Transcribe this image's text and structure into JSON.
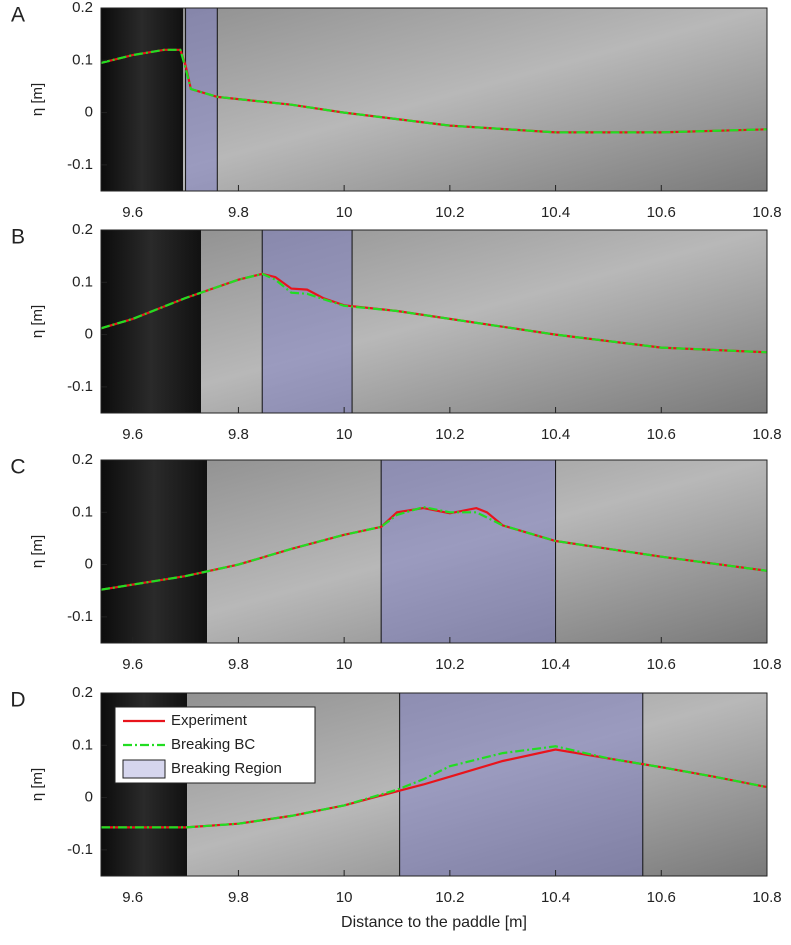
{
  "chart_data": [
    {
      "type": "line",
      "label": "A",
      "ylabel": "η [m]",
      "x": [
        9.54,
        9.6,
        9.66,
        9.69,
        9.7,
        9.71,
        9.76,
        9.9,
        10.0,
        10.2,
        10.4,
        10.6,
        10.8
      ],
      "series": [
        {
          "color": "#e8141c",
          "style": "solid",
          "values": [
            0.095,
            0.11,
            0.12,
            0.12,
            0.09,
            0.045,
            0.03,
            0.015,
            0.0,
            -0.025,
            -0.038,
            -0.038,
            -0.032
          ]
        },
        {
          "color": "#22dd22",
          "style": "dashdot",
          "values": [
            0.095,
            0.11,
            0.12,
            0.12,
            0.085,
            0.045,
            0.03,
            0.015,
            0.0,
            -0.025,
            -0.038,
            -0.038,
            -0.032
          ]
        }
      ],
      "region": {
        "x": [
          9.7,
          9.76
        ],
        "color": "#7878c8"
      },
      "xlim": [
        9.54,
        10.8
      ],
      "xticks": [
        9.6,
        9.8,
        10,
        10.2,
        10.4,
        10.6,
        10.8
      ],
      "ylim": [
        -0.15,
        0.2
      ],
      "yticks": [
        0.2,
        0.1,
        0,
        -0.1
      ]
    },
    {
      "type": "line",
      "label": "B",
      "ylabel": "η [m]",
      "x": [
        9.54,
        9.6,
        9.7,
        9.8,
        9.845,
        9.87,
        9.9,
        9.93,
        9.96,
        10.0,
        10.1,
        10.2,
        10.4,
        10.6,
        10.8
      ],
      "series": [
        {
          "color": "#e8141c",
          "style": "solid",
          "values": [
            0.012,
            0.03,
            0.07,
            0.105,
            0.116,
            0.11,
            0.088,
            0.086,
            0.07,
            0.056,
            0.045,
            0.03,
            0.0,
            -0.025,
            -0.034
          ]
        },
        {
          "color": "#22dd22",
          "style": "dashdot",
          "values": [
            0.012,
            0.03,
            0.07,
            0.105,
            0.116,
            0.105,
            0.08,
            0.078,
            0.068,
            0.055,
            0.045,
            0.03,
            0.0,
            -0.025,
            -0.034
          ]
        }
      ],
      "region": {
        "x": [
          9.845,
          10.015
        ],
        "color": "#7878c8"
      },
      "xlim": [
        9.54,
        10.8
      ],
      "xticks": [
        9.6,
        9.8,
        10,
        10.2,
        10.4,
        10.6,
        10.8
      ],
      "ylim": [
        -0.15,
        0.2
      ],
      "yticks": [
        0.2,
        0.1,
        0,
        -0.1
      ]
    },
    {
      "type": "line",
      "label": "C",
      "ylabel": "η [m]",
      "x": [
        9.54,
        9.7,
        9.8,
        9.9,
        10.0,
        10.07,
        10.1,
        10.15,
        10.2,
        10.25,
        10.27,
        10.3,
        10.4,
        10.6,
        10.8
      ],
      "series": [
        {
          "color": "#e8141c",
          "style": "solid",
          "values": [
            -0.048,
            -0.022,
            0.0,
            0.03,
            0.057,
            0.072,
            0.1,
            0.108,
            0.098,
            0.108,
            0.1,
            0.075,
            0.045,
            0.015,
            -0.012
          ]
        },
        {
          "color": "#22dd22",
          "style": "dashdot",
          "values": [
            -0.048,
            -0.022,
            0.0,
            0.03,
            0.057,
            0.072,
            0.095,
            0.11,
            0.1,
            0.1,
            0.09,
            0.075,
            0.045,
            0.015,
            -0.012
          ]
        }
      ],
      "region": {
        "x": [
          10.07,
          10.4
        ],
        "color": "#7878c8"
      },
      "xlim": [
        9.54,
        10.8
      ],
      "xticks": [
        9.6,
        9.8,
        10,
        10.2,
        10.4,
        10.6,
        10.8
      ],
      "ylim": [
        -0.15,
        0.2
      ],
      "yticks": [
        0.2,
        0.1,
        0,
        -0.1
      ]
    },
    {
      "type": "line",
      "label": "D",
      "ylabel": "η [m]",
      "xlabel": "Distance to the paddle [m]",
      "x": [
        9.54,
        9.7,
        9.8,
        9.9,
        10.0,
        10.1,
        10.15,
        10.2,
        10.3,
        10.4,
        10.5,
        10.6,
        10.7,
        10.8
      ],
      "series": [
        {
          "name": "Experiment",
          "color": "#e8141c",
          "style": "solid",
          "values": [
            -0.057,
            -0.057,
            -0.05,
            -0.035,
            -0.015,
            0.012,
            0.025,
            0.04,
            0.07,
            0.092,
            0.075,
            0.058,
            0.04,
            0.02
          ]
        },
        {
          "name": "Breaking BC",
          "color": "#22dd22",
          "style": "dashdot",
          "values": [
            -0.057,
            -0.057,
            -0.05,
            -0.035,
            -0.015,
            0.015,
            0.035,
            0.06,
            0.085,
            0.098,
            0.075,
            0.058,
            0.04,
            0.02
          ]
        }
      ],
      "region": {
        "name": "Breaking Region",
        "x": [
          10.105,
          10.565
        ],
        "color": "#7878c8"
      },
      "legend": "upper left",
      "xlim": [
        9.54,
        10.8
      ],
      "xticks": [
        9.6,
        9.8,
        10,
        10.2,
        10.4,
        10.6,
        10.8
      ],
      "ylim": [
        -0.15,
        0.2
      ],
      "yticks": [
        0.2,
        0.1,
        0,
        -0.1
      ]
    }
  ]
}
